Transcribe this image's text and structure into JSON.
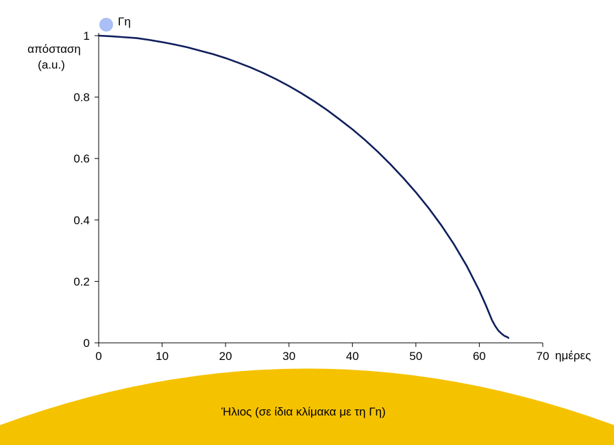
{
  "chart_data": {
    "type": "line",
    "title": "",
    "xlabel": "ημέρες",
    "ylabel": "απόσταση",
    "ylabel_unit": "(a.u.)",
    "xlim": [
      0,
      70
    ],
    "ylim": [
      0,
      1
    ],
    "x_ticks": [
      "0",
      "10",
      "20",
      "30",
      "40",
      "50",
      "60",
      "70"
    ],
    "y_ticks": [
      "0",
      "0.2",
      "0.4",
      "0.6",
      "0.8",
      "1"
    ],
    "grid": false,
    "series": [
      {
        "name": "",
        "color": "#0f1f5c",
        "x": [
          0,
          2,
          4,
          6,
          8,
          10,
          12,
          14,
          16,
          18,
          20,
          22,
          24,
          26,
          28,
          30,
          32,
          34,
          36,
          38,
          40,
          42,
          44,
          46,
          48,
          50,
          52,
          54,
          56,
          58,
          60,
          61,
          62,
          62.5,
          63,
          63.5,
          64,
          64.3,
          64.6
        ],
        "y": [
          1.0,
          0.998,
          0.995,
          0.992,
          0.986,
          0.979,
          0.971,
          0.962,
          0.951,
          0.94,
          0.927,
          0.912,
          0.896,
          0.878,
          0.858,
          0.836,
          0.812,
          0.786,
          0.758,
          0.727,
          0.695,
          0.66,
          0.622,
          0.581,
          0.537,
          0.49,
          0.439,
          0.383,
          0.321,
          0.251,
          0.17,
          0.124,
          0.074,
          0.055,
          0.04,
          0.03,
          0.022,
          0.02,
          0.016
        ]
      }
    ],
    "annotations": {
      "earth_label": "Γη",
      "earth_color": "#a9bff5",
      "sun_label": "Ήλιος (σε ίδια κλίμακα με τη Γη)",
      "sun_color": "#f5c200"
    }
  }
}
